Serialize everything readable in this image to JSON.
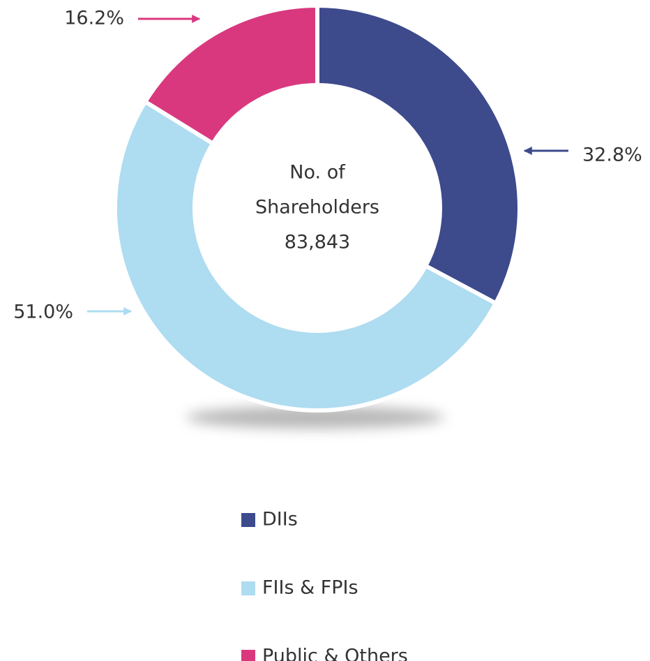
{
  "chart_data": {
    "type": "donut",
    "categories": [
      "DIIs",
      "FIIs & FPIs",
      "Public & Others"
    ],
    "values": [
      32.8,
      51.0,
      16.2
    ],
    "value_labels": [
      "32.8%",
      "51.0%",
      "16.2%"
    ],
    "colors": [
      "#3d4a8c",
      "#aedcf0",
      "#d9387f"
    ],
    "center_text": [
      "No. of",
      "Shareholders",
      "83,843"
    ],
    "legend": "bottom"
  }
}
